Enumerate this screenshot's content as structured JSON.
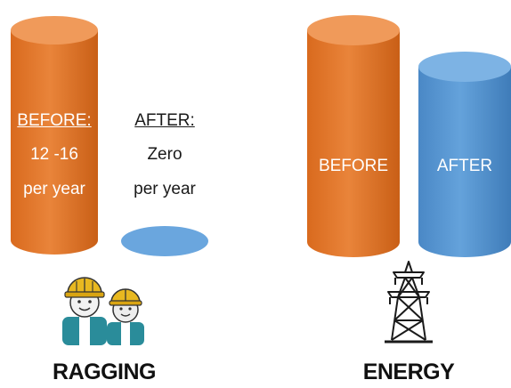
{
  "ragging": {
    "before_heading": "BEFORE:",
    "before_value": "12 -16",
    "before_unit": "per year",
    "after_heading": "AFTER:",
    "after_value": "Zero",
    "after_unit": "per year",
    "label": "RAGGING"
  },
  "energy": {
    "before_label": "BEFORE",
    "after_label": "AFTER",
    "label": "ENERGY"
  },
  "colors": {
    "before_orange": "#E87B2E",
    "after_blue": "#5B9BD5",
    "helmet_yellow": "#E8B820",
    "worker_teal": "#2A8C9A"
  },
  "icons": [
    "workers-icon",
    "power-tower-icon"
  ]
}
